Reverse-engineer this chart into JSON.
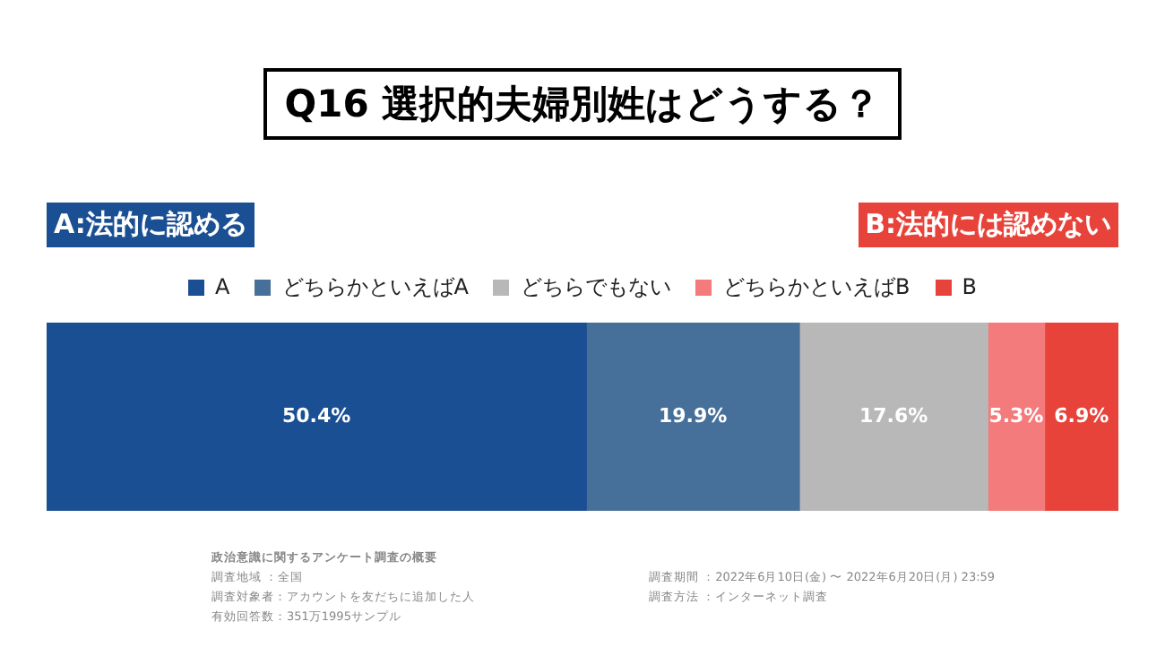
{
  "chart_data": {
    "type": "bar",
    "orientation": "horizontal",
    "stacked": true,
    "title": "Q16 選択的夫婦別姓はどうする？",
    "categories": [
      null
    ],
    "series": [
      {
        "name": "A",
        "color": "#1b4f93",
        "values": [
          50.4
        ],
        "value_labels": [
          "50.4%"
        ]
      },
      {
        "name": "どちらかといえばA",
        "color": "#46709a",
        "values": [
          19.9
        ],
        "value_labels": [
          "19.9%"
        ]
      },
      {
        "name": "どちらでもない",
        "color": "#b8b8b8",
        "values": [
          17.6
        ],
        "value_labels": [
          "17.6%"
        ]
      },
      {
        "name": "どちらかといえばB",
        "color": "#f47b7b",
        "values": [
          5.3
        ],
        "value_labels": [
          "5.3%"
        ]
      },
      {
        "name": "B",
        "color": "#e8433a",
        "values": [
          6.9
        ],
        "value_labels": [
          "6.9%"
        ]
      }
    ],
    "legend": "top",
    "annotations": [
      "A:法的に認める",
      "B:法的には認めない",
      "政治意識に関するアンケート調査の概要",
      "調査地域 ：全国",
      "調査対象者：アカウントを友だちに追加した人",
      "有効回答数：351万1995サンプル",
      "調査期間 ：2022年6月10日(金) 〜 2022年6月20日(月) 23:59",
      "調査方法 ：インターネット調査"
    ]
  }
}
